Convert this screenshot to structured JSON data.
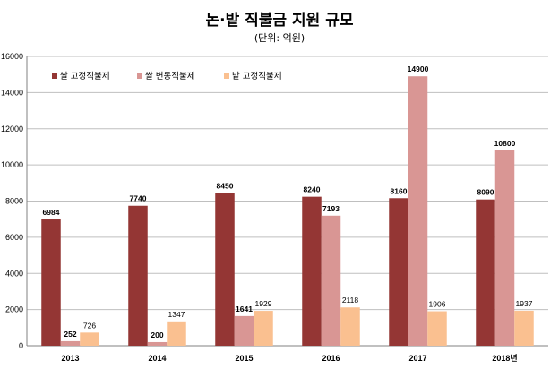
{
  "chart_data": {
    "type": "bar",
    "title": "논·밭 직불금 지원 규모",
    "subtitle": "(단위: 억원)",
    "categories": [
      "2013",
      "2014",
      "2015",
      "2016",
      "2017",
      "2018년"
    ],
    "series": [
      {
        "name": "쌀 고정직불제",
        "color": "#943634",
        "values": [
          6984,
          7740,
          8450,
          8240,
          8160,
          8090
        ]
      },
      {
        "name": "쌀 변동직불제",
        "color": "#D99694",
        "values": [
          252,
          200,
          1641,
          7193,
          14900,
          10800
        ]
      },
      {
        "name": "밭 고정직불제",
        "color": "#FAC090",
        "values": [
          726,
          1347,
          1929,
          2118,
          1906,
          1937
        ]
      }
    ],
    "ylim": [
      0,
      16000
    ],
    "yticks": [
      0,
      2000,
      4000,
      6000,
      8000,
      10000,
      12000,
      14000,
      16000
    ],
    "grid": true,
    "legend_position": "top-left",
    "label_color_highlight": "#C00000",
    "label_color_default": "#000000"
  }
}
